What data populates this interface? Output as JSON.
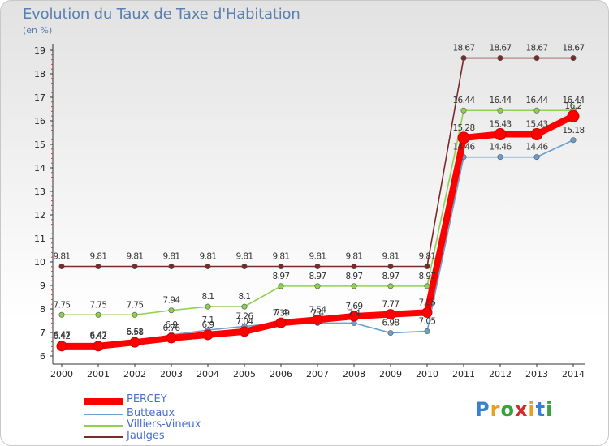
{
  "chart_data": {
    "type": "line",
    "title": "Evolution du Taux de Taxe d'Habitation",
    "subtitle": "(en %)",
    "x": [
      "2000",
      "2001",
      "2002",
      "2003",
      "2004",
      "2005",
      "2006",
      "2007",
      "2008",
      "2009",
      "2010",
      "2011",
      "2012",
      "2013",
      "2014"
    ],
    "y_ticks": [
      "6",
      "7",
      "8",
      "9",
      "10",
      "11",
      "12",
      "13",
      "14",
      "15",
      "16",
      "17",
      "18",
      "19"
    ],
    "ylim": [
      6,
      19
    ],
    "grid": false,
    "legend_position": "bottom-left",
    "series": [
      {
        "name": "Jaulges",
        "color": "#7a2a2a",
        "values": [
          9.81,
          9.81,
          9.81,
          9.81,
          9.81,
          9.81,
          9.81,
          9.81,
          9.81,
          9.81,
          9.81,
          18.67,
          18.67,
          18.67,
          18.67
        ],
        "labels": [
          "9.81",
          "9.81",
          "9.81",
          "9.81",
          "9.81",
          "9.81",
          "9.81",
          "9.81",
          "9.81",
          "9.81",
          "9.81",
          "18.67",
          "18.67",
          "18.67",
          "18.67"
        ]
      },
      {
        "name": "Villiers-Vineux",
        "color": "#8fd14f",
        "values": [
          7.75,
          7.75,
          7.75,
          7.94,
          8.1,
          8.1,
          8.97,
          8.97,
          8.97,
          8.97,
          8.97,
          16.44,
          16.44,
          16.44,
          16.44
        ],
        "labels": [
          "7.75",
          "7.75",
          "7.75",
          "7.94",
          "8.1",
          "8.1",
          "8.97",
          "8.97",
          "8.97",
          "8.97",
          "8.97",
          "16.44",
          "16.44",
          "16.44",
          "16.44"
        ]
      },
      {
        "name": "Butteaux",
        "color": "#6a9fd0",
        "values": [
          6.47,
          6.47,
          6.61,
          6.9,
          7.1,
          7.26,
          7.39,
          7.4,
          7.4,
          6.98,
          7.05,
          14.46,
          14.46,
          14.46,
          15.18
        ],
        "labels": [
          "6.47",
          "6.47",
          "6.61",
          "6.9",
          "7.1",
          "7.26",
          "7.39",
          "7.4",
          "7.4",
          "6.98",
          "7.05",
          "14.46",
          "14.46",
          "14.46",
          "15.18"
        ]
      },
      {
        "name": "PERCEY",
        "color": "#ff0000",
        "values": [
          6.42,
          6.42,
          6.58,
          6.76,
          6.9,
          7.04,
          7.41,
          7.54,
          7.69,
          7.77,
          7.85,
          15.28,
          15.43,
          15.43,
          16.2
        ],
        "labels": [
          "6.42",
          "6.42",
          "6.58",
          "6.76",
          "6.9",
          "7.04",
          "7.4",
          "7.54",
          "7.69",
          "7.77",
          "7.85",
          "15.28",
          "15.43",
          "15.43",
          "16.2"
        ]
      }
    ],
    "legend": [
      "PERCEY",
      "Butteaux",
      "Villiers-Vineux",
      "Jaulges"
    ]
  },
  "logo": {
    "letters": [
      "P",
      "r",
      "o",
      "x",
      "i",
      "t",
      "i"
    ]
  }
}
